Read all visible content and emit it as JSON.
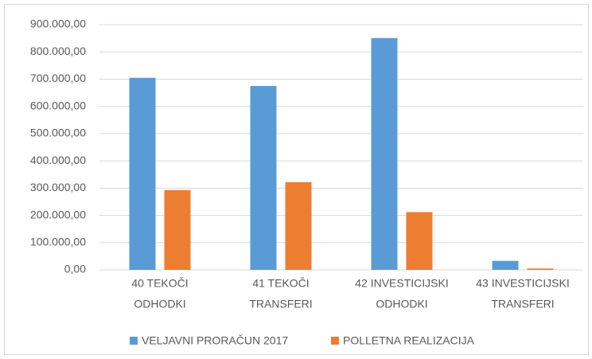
{
  "chart_data": {
    "type": "bar",
    "categories": [
      [
        "40 TEKOČI",
        "ODHODKI"
      ],
      [
        "41 TEKOČI",
        "TRANSFERI"
      ],
      [
        "42 INVESTICIJSKI",
        "ODHODKI"
      ],
      [
        "43 INVESTICIJSKI",
        "TRANSFERI"
      ]
    ],
    "series": [
      {
        "name": "VELJAVNI PRORAČUN 2017",
        "color": "#5b9bd5",
        "values": [
          705000,
          675000,
          851000,
          33000
        ]
      },
      {
        "name": "POLLETNA REALIZACIJA",
        "color": "#ed7d31",
        "values": [
          293000,
          322000,
          212000,
          5000
        ]
      }
    ],
    "ylim": [
      0,
      900000
    ],
    "yticks": [
      {
        "value": 0,
        "label": "0,00"
      },
      {
        "value": 100000,
        "label": "100.000,00"
      },
      {
        "value": 200000,
        "label": "200.000,00"
      },
      {
        "value": 300000,
        "label": "300.000,00"
      },
      {
        "value": 400000,
        "label": "400.000,00"
      },
      {
        "value": 500000,
        "label": "500.000,00"
      },
      {
        "value": 600000,
        "label": "600.000,00"
      },
      {
        "value": 700000,
        "label": "700.000,00"
      },
      {
        "value": 800000,
        "label": "800.000,00"
      },
      {
        "value": 900000,
        "label": "900.000,00"
      }
    ],
    "grid": true,
    "legend": "bottom"
  }
}
